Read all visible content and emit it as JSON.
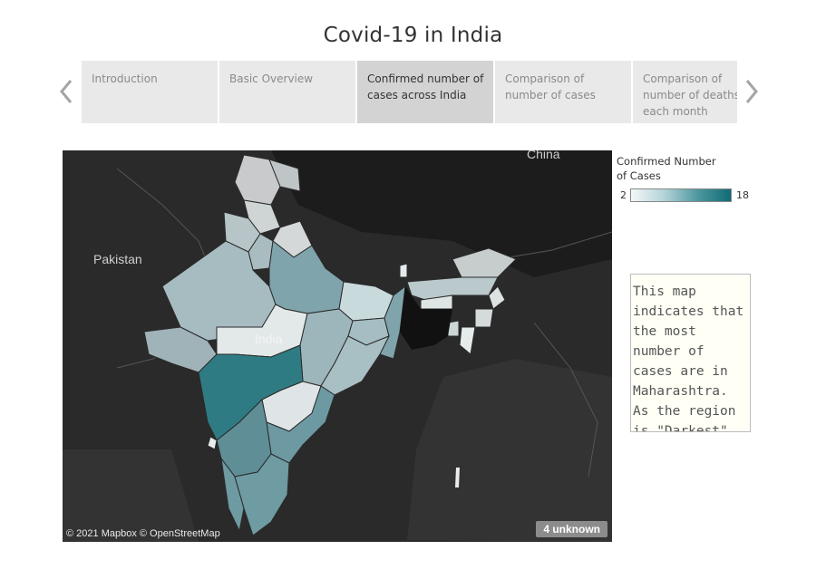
{
  "title": "Covid-19 in India",
  "nav": {
    "prev_icon": "chevron-left-icon",
    "next_icon": "chevron-right-icon",
    "tabs": [
      {
        "label": "Introduction",
        "active": false
      },
      {
        "label": "Basic Overview",
        "active": false
      },
      {
        "label": "Confirmed number of cases across India",
        "active": true
      },
      {
        "label": "Comparison of number of cases",
        "active": false
      },
      {
        "label": "Comparison of number of deaths each month",
        "active": false
      }
    ]
  },
  "map": {
    "labels": {
      "china": "China",
      "pakistan": "Pakistan",
      "india": "India"
    },
    "credit": "© 2021 Mapbox © OpenStreetMap",
    "unknown_badge": "4 unknown"
  },
  "legend": {
    "title": "Confirmed Number of Cases",
    "min": "2",
    "max": "18",
    "colors": {
      "low": "#f4f7f8",
      "high": "#0f6b74"
    }
  },
  "note": "This map indicates that the most number of cases are in Maharashtra. As the region is \"Darkest\"."
}
